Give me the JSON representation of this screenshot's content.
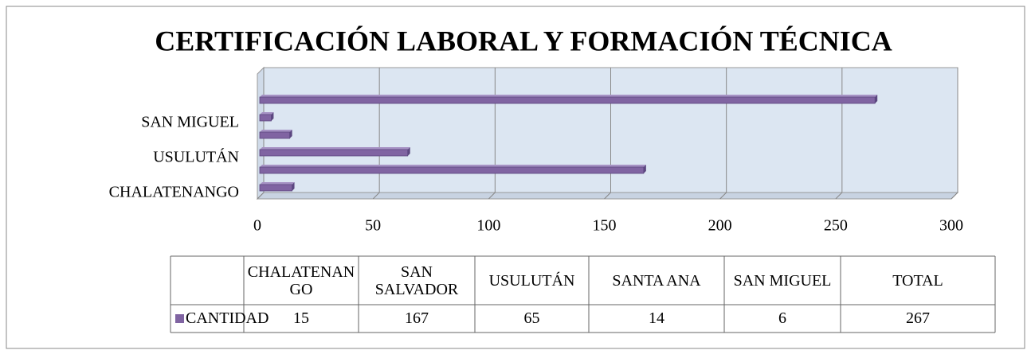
{
  "chart_data": {
    "type": "bar",
    "orientation": "horizontal",
    "title": "CERTIFICACIÓN LABORAL Y FORMACIÓN TÉCNICA",
    "categories": [
      "CHALATENANGO",
      "SAN SALVADOR",
      "USULUTÁN",
      "SANTA ANA",
      "SAN MIGUEL",
      "TOTAL"
    ],
    "series": [
      {
        "name": "CANTIDAD",
        "color": "#8064a2",
        "values": [
          15,
          167,
          65,
          14,
          6,
          267
        ]
      }
    ],
    "xlim": [
      0,
      300
    ],
    "xticks": [
      0,
      50,
      100,
      150,
      200,
      250,
      300
    ],
    "grid": true
  }
}
